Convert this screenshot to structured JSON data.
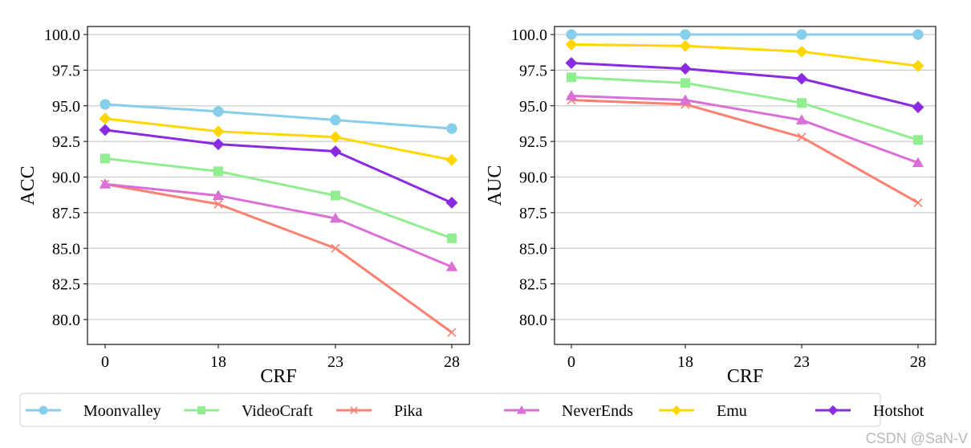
{
  "chart_data": [
    {
      "type": "line",
      "categories": [
        "0",
        "18",
        "23",
        "28"
      ],
      "xlabel": "CRF",
      "ylabel": "ACC",
      "ylim": [
        78.3,
        100.6
      ],
      "yticks": [
        "80.0",
        "82.5",
        "85.0",
        "87.5",
        "90.0",
        "92.5",
        "95.0",
        "97.5",
        "100.0"
      ],
      "grid": "horizontal",
      "series": [
        {
          "name": "Moonvalley",
          "values": [
            95.1,
            94.6,
            94.0,
            93.4
          ]
        },
        {
          "name": "VideoCraft",
          "values": [
            91.3,
            90.4,
            88.7,
            85.7
          ]
        },
        {
          "name": "Pika",
          "values": [
            89.5,
            88.1,
            85.0,
            79.1
          ]
        },
        {
          "name": "NeverEnds",
          "values": [
            89.5,
            88.7,
            87.1,
            83.7
          ]
        },
        {
          "name": "Emu",
          "values": [
            94.1,
            93.2,
            92.8,
            91.2
          ]
        },
        {
          "name": "Hotshot",
          "values": [
            93.3,
            92.3,
            91.8,
            88.2
          ]
        }
      ]
    },
    {
      "type": "line",
      "categories": [
        "0",
        "18",
        "23",
        "28"
      ],
      "xlabel": "CRF",
      "ylabel": "AUC",
      "ylim": [
        78.3,
        100.6
      ],
      "yticks": [
        "80.0",
        "82.5",
        "85.0",
        "87.5",
        "90.0",
        "92.5",
        "95.0",
        "97.5",
        "100.0"
      ],
      "grid": "horizontal",
      "series": [
        {
          "name": "Moonvalley",
          "values": [
            100.0,
            100.0,
            100.0,
            100.0
          ]
        },
        {
          "name": "VideoCraft",
          "values": [
            97.0,
            96.6,
            95.2,
            92.6
          ]
        },
        {
          "name": "Pika",
          "values": [
            95.4,
            95.1,
            92.8,
            88.2
          ]
        },
        {
          "name": "NeverEnds",
          "values": [
            95.7,
            95.4,
            94.0,
            91.0
          ]
        },
        {
          "name": "Emu",
          "values": [
            99.3,
            99.2,
            98.8,
            97.8
          ]
        },
        {
          "name": "Hotshot",
          "values": [
            98.0,
            97.6,
            96.9,
            94.9
          ]
        }
      ]
    }
  ],
  "legend": {
    "placement": "bottom-center",
    "entries": [
      {
        "name": "Moonvalley",
        "color": "#87CEEB",
        "marker": "circle"
      },
      {
        "name": "VideoCraft",
        "color": "#90EE90",
        "marker": "square"
      },
      {
        "name": "Pika",
        "color": "#FA8072",
        "marker": "x"
      },
      {
        "name": "NeverEnds",
        "color": "#DA70D6",
        "marker": "triangle"
      },
      {
        "name": "Emu",
        "color": "#FFD700",
        "marker": "diamond"
      },
      {
        "name": "Hotshot",
        "color": "#8A2BE2",
        "marker": "diamond"
      }
    ]
  },
  "watermark": "CSDN @SaN-V"
}
